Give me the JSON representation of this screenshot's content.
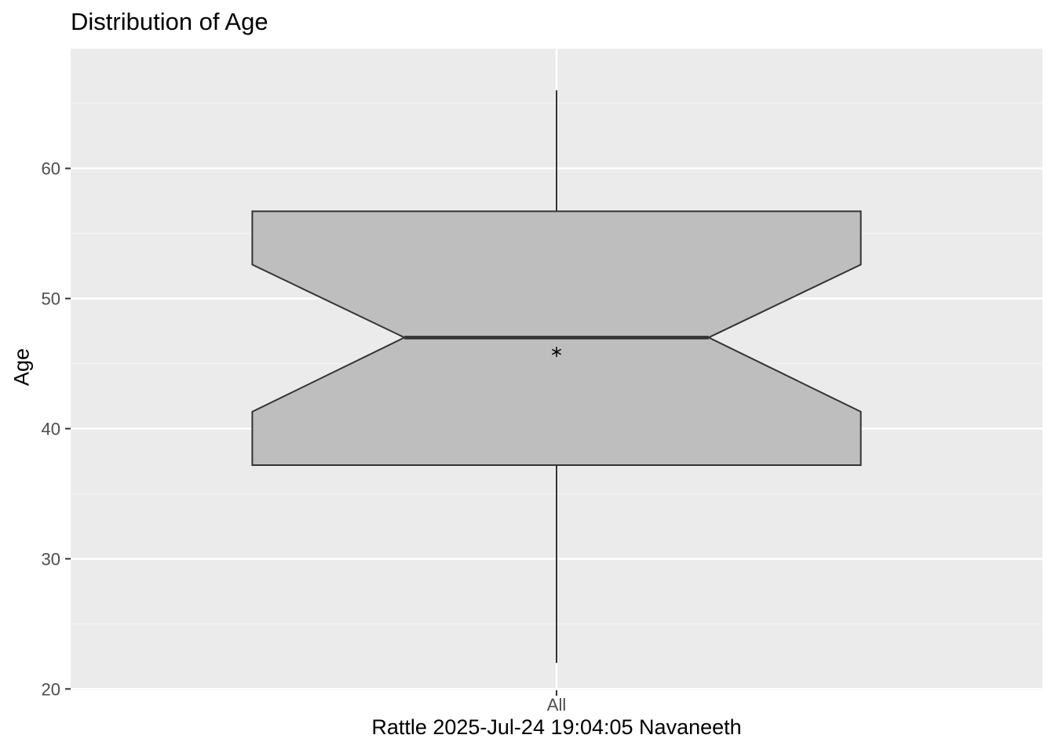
{
  "chart_data": {
    "type": "boxplot",
    "title": "Distribution of Age",
    "xlabel": "Rattle 2025-Jul-24 19:04:05 Navaneeth",
    "ylabel": "Age",
    "categories": [
      "All"
    ],
    "boxes": [
      {
        "category": "All",
        "whisker_low": 22,
        "q1": 37.2,
        "notch_low": 41.3,
        "median": 47,
        "notch_high": 52.6,
        "q3": 56.7,
        "whisker_high": 66,
        "mean": 45.9
      }
    ],
    "y_ticks": [
      20,
      30,
      40,
      50,
      60
    ],
    "ylim": [
      19.9,
      69.2
    ],
    "notched": true,
    "grid": true,
    "legend": "none",
    "colors": {
      "panel_background": "#ebebeb",
      "grid_major": "#ffffff",
      "grid_minor": "#f4f4f4",
      "box_fill": "#bebebe",
      "box_stroke": "#333333",
      "tick_label": "#4d4d4d"
    }
  }
}
